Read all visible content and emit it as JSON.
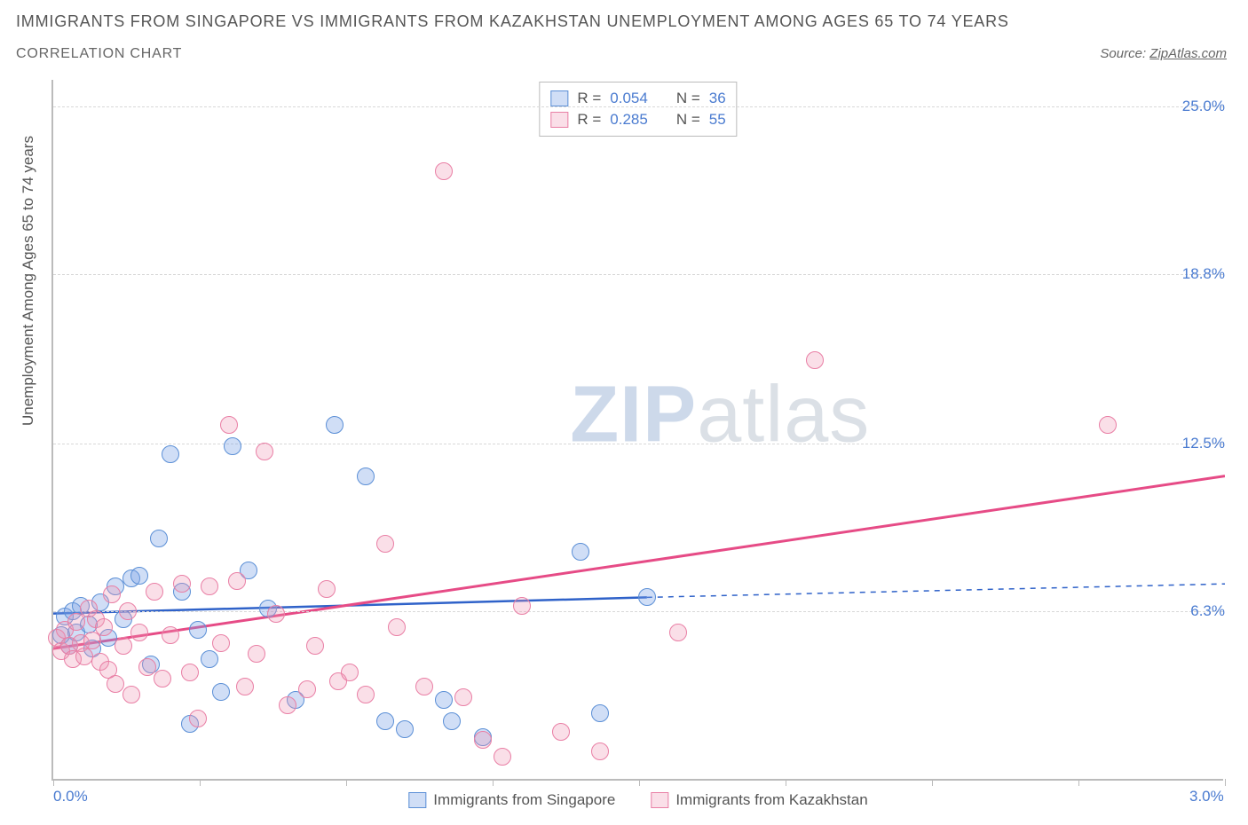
{
  "title": "IMMIGRANTS FROM SINGAPORE VS IMMIGRANTS FROM KAZAKHSTAN UNEMPLOYMENT AMONG AGES 65 TO 74 YEARS",
  "subtitle": "CORRELATION CHART",
  "source_prefix": "Source: ",
  "source_name": "ZipAtlas.com",
  "ylabel": "Unemployment Among Ages 65 to 74 years",
  "watermark_bold": "ZIP",
  "watermark_rest": "atlas",
  "chart": {
    "type": "scatter",
    "background_color": "#ffffff",
    "grid_color": "#d8d8d8",
    "axis_color": "#bbbbbb",
    "xlim": [
      0.0,
      3.0
    ],
    "ylim": [
      0.0,
      26.0
    ],
    "xtick_positions": [
      0.0,
      0.375,
      0.75,
      1.125,
      1.5,
      1.875,
      2.25,
      2.625,
      3.0
    ],
    "xtick_labels_shown": [
      {
        "pos": 0.0,
        "label": "0.0%"
      },
      {
        "pos": 3.0,
        "label": "3.0%"
      }
    ],
    "ytick_positions": [
      6.3,
      12.5,
      18.8,
      25.0
    ],
    "ytick_labels": [
      "6.3%",
      "12.5%",
      "18.8%",
      "25.0%"
    ],
    "point_radius": 10,
    "title_fontsize": 18,
    "label_fontsize": 17,
    "tick_fontsize": 17,
    "tick_color": "#4a7bd0",
    "series": [
      {
        "name": "Immigrants from Singapore",
        "color_fill": "rgba(120,160,230,0.35)",
        "color_stroke": "#5b8fd6",
        "class": "pt-blue",
        "R": "0.054",
        "N": "36",
        "trend": {
          "x0": 0.0,
          "y0": 6.2,
          "x1": 1.52,
          "y1": 6.8,
          "color": "#2f62c9",
          "width": 2.5,
          "dash_extend_to": 3.0,
          "dash_y1": 7.3
        },
        "points": [
          [
            0.02,
            5.4
          ],
          [
            0.03,
            6.1
          ],
          [
            0.04,
            5.0
          ],
          [
            0.05,
            6.3
          ],
          [
            0.06,
            5.5
          ],
          [
            0.07,
            6.5
          ],
          [
            0.09,
            5.8
          ],
          [
            0.1,
            4.9
          ],
          [
            0.12,
            6.6
          ],
          [
            0.14,
            5.3
          ],
          [
            0.16,
            7.2
          ],
          [
            0.18,
            6.0
          ],
          [
            0.2,
            7.5
          ],
          [
            0.22,
            7.6
          ],
          [
            0.25,
            4.3
          ],
          [
            0.27,
            9.0
          ],
          [
            0.3,
            12.1
          ],
          [
            0.33,
            7.0
          ],
          [
            0.35,
            2.1
          ],
          [
            0.37,
            5.6
          ],
          [
            0.4,
            4.5
          ],
          [
            0.43,
            3.3
          ],
          [
            0.46,
            12.4
          ],
          [
            0.5,
            7.8
          ],
          [
            0.55,
            6.4
          ],
          [
            0.62,
            3.0
          ],
          [
            0.72,
            13.2
          ],
          [
            0.8,
            11.3
          ],
          [
            0.85,
            2.2
          ],
          [
            0.9,
            1.9
          ],
          [
            1.0,
            3.0
          ],
          [
            1.02,
            2.2
          ],
          [
            1.1,
            1.6
          ],
          [
            1.35,
            8.5
          ],
          [
            1.4,
            2.5
          ],
          [
            1.52,
            6.8
          ]
        ]
      },
      {
        "name": "Immigrants from Kazakhstan",
        "color_fill": "rgba(240,150,180,0.30)",
        "color_stroke": "#e97fa5",
        "class": "pt-pink",
        "R": "0.285",
        "N": "55",
        "trend": {
          "x0": 0.0,
          "y0": 4.9,
          "x1": 3.0,
          "y1": 11.3,
          "color": "#e64b86",
          "width": 3
        },
        "points": [
          [
            0.01,
            5.3
          ],
          [
            0.02,
            4.8
          ],
          [
            0.03,
            5.6
          ],
          [
            0.04,
            5.0
          ],
          [
            0.05,
            4.5
          ],
          [
            0.06,
            5.9
          ],
          [
            0.07,
            5.1
          ],
          [
            0.08,
            4.6
          ],
          [
            0.09,
            6.4
          ],
          [
            0.1,
            5.2
          ],
          [
            0.11,
            6.0
          ],
          [
            0.12,
            4.4
          ],
          [
            0.13,
            5.7
          ],
          [
            0.15,
            6.9
          ],
          [
            0.16,
            3.6
          ],
          [
            0.18,
            5.0
          ],
          [
            0.19,
            6.3
          ],
          [
            0.2,
            3.2
          ],
          [
            0.22,
            5.5
          ],
          [
            0.24,
            4.2
          ],
          [
            0.26,
            7.0
          ],
          [
            0.28,
            3.8
          ],
          [
            0.3,
            5.4
          ],
          [
            0.33,
            7.3
          ],
          [
            0.35,
            4.0
          ],
          [
            0.37,
            2.3
          ],
          [
            0.4,
            7.2
          ],
          [
            0.43,
            5.1
          ],
          [
            0.45,
            13.2
          ],
          [
            0.47,
            7.4
          ],
          [
            0.49,
            3.5
          ],
          [
            0.52,
            4.7
          ],
          [
            0.54,
            12.2
          ],
          [
            0.57,
            6.2
          ],
          [
            0.6,
            2.8
          ],
          [
            0.65,
            3.4
          ],
          [
            0.67,
            5.0
          ],
          [
            0.7,
            7.1
          ],
          [
            0.73,
            3.7
          ],
          [
            0.76,
            4.0
          ],
          [
            0.8,
            3.2
          ],
          [
            0.85,
            8.8
          ],
          [
            0.88,
            5.7
          ],
          [
            0.95,
            3.5
          ],
          [
            1.0,
            22.6
          ],
          [
            1.05,
            3.1
          ],
          [
            1.1,
            1.5
          ],
          [
            1.15,
            0.9
          ],
          [
            1.2,
            6.5
          ],
          [
            1.3,
            1.8
          ],
          [
            1.4,
            1.1
          ],
          [
            1.6,
            5.5
          ],
          [
            1.95,
            15.6
          ],
          [
            2.7,
            13.2
          ],
          [
            0.14,
            4.1
          ]
        ]
      }
    ],
    "legend_bottom": [
      {
        "swatch": "sw-blue",
        "label": "Immigrants from Singapore"
      },
      {
        "swatch": "sw-pink",
        "label": "Immigrants from Kazakhstan"
      }
    ]
  }
}
